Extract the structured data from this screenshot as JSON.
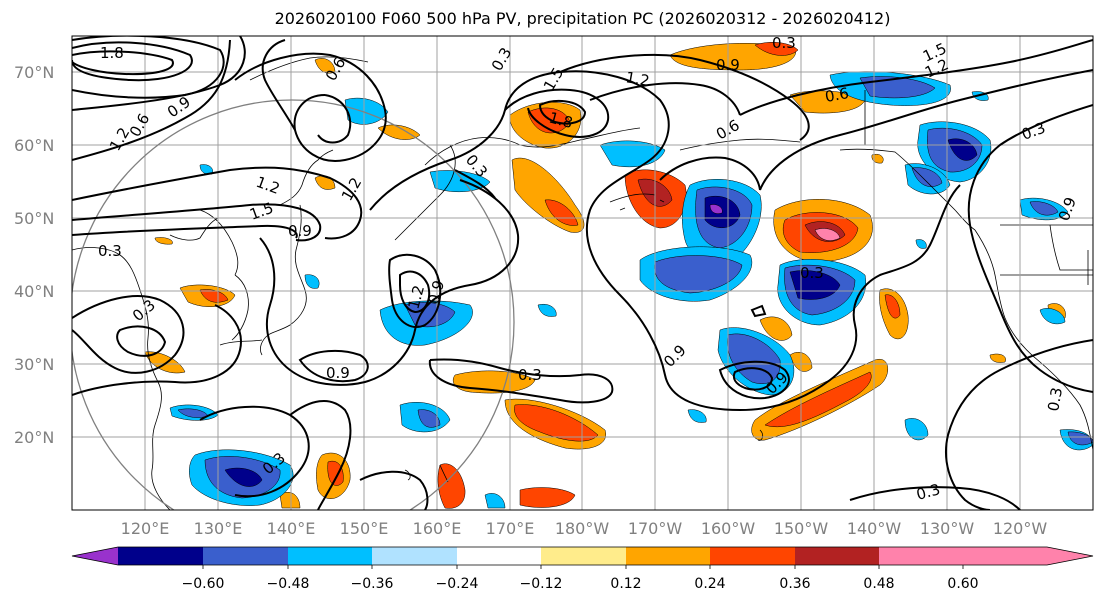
{
  "title": "2026020100 F060 500 hPa PV, precipitation PC (2026020312 - 2026020412)",
  "lat_labels": [
    "70°N",
    "60°N",
    "50°N",
    "40°N",
    "30°N",
    "20°N"
  ],
  "lon_labels": [
    "120°E",
    "130°E",
    "140°E",
    "150°E",
    "160°E",
    "170°E",
    "180°W",
    "170°W",
    "160°W",
    "150°W",
    "140°W",
    "130°W",
    "120°W"
  ],
  "colorbar": {
    "ticks": [
      "−0.60",
      "−0.48",
      "−0.36",
      "−0.24",
      "−0.12",
      "0.12",
      "0.24",
      "0.36",
      "0.48",
      "0.60"
    ],
    "colors": [
      "#9932cc",
      "#00008b",
      "#3a5fcd",
      "#00bfff",
      "#b0e2ff",
      "#ffffff",
      "#ffec8b",
      "#ffa500",
      "#ff4500",
      "#b22222",
      "#ff82ab"
    ]
  },
  "contour_labels": [
    "0.3",
    "0.6",
    "0.9",
    "1.2",
    "1.5",
    "1.8"
  ]
}
